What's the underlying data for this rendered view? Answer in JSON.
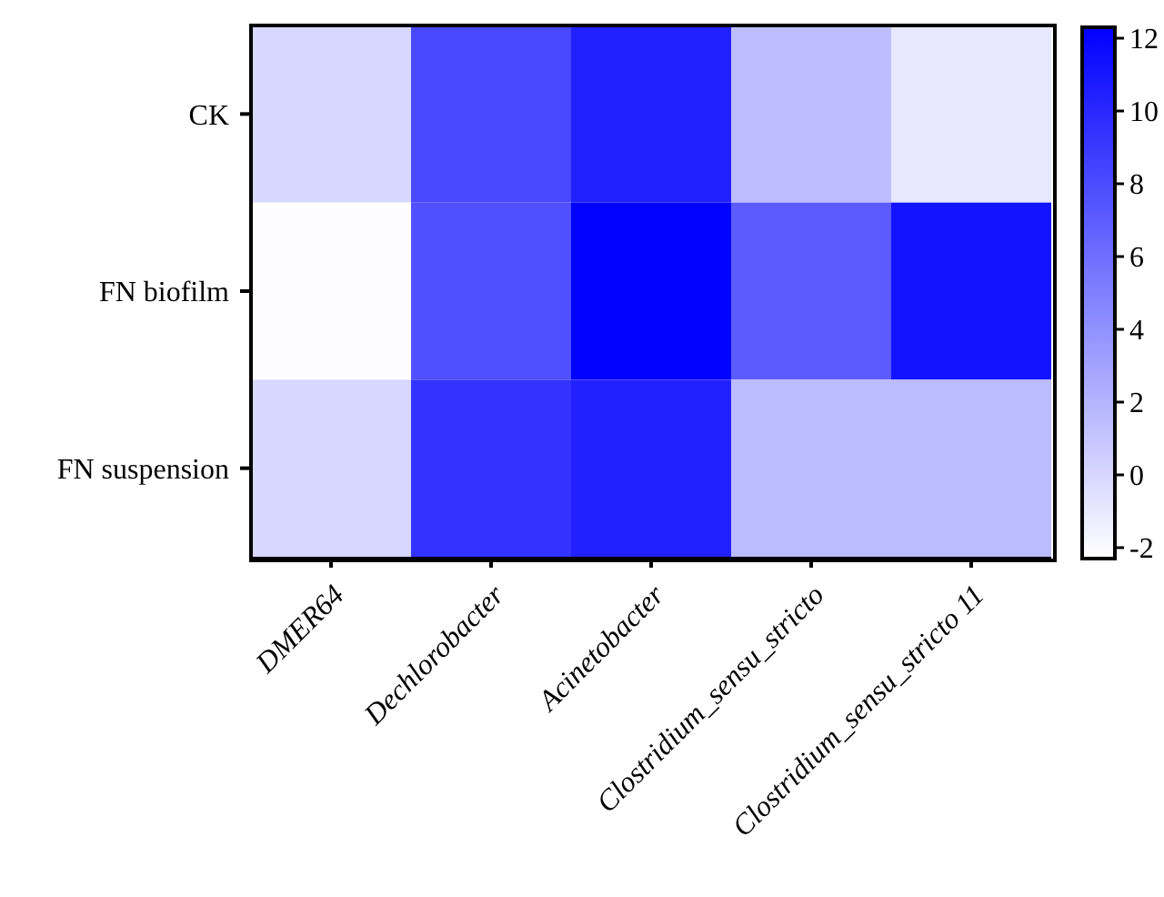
{
  "chart_data": {
    "type": "heatmap",
    "categories": [
      "DMER64",
      "Dechlorobacter",
      "Acinetobacter",
      "Clostridium_sensu_stricto",
      "Clostridium_sensu_stricto 11"
    ],
    "y_categories": [
      "CK",
      "FN biofilm",
      "FN suspension"
    ],
    "cells": [
      [
        0,
        8.2,
        10.4,
        1.5,
        -0.9
      ],
      [
        -2.2,
        7.7,
        12.2,
        7.1,
        11.2
      ],
      [
        0,
        9.4,
        10.4,
        1.6,
        1.6
      ]
    ],
    "clim": [
      -2.3,
      12.3
    ],
    "cticks": [
      -2,
      0,
      2,
      4,
      6,
      8,
      10,
      12
    ]
  }
}
